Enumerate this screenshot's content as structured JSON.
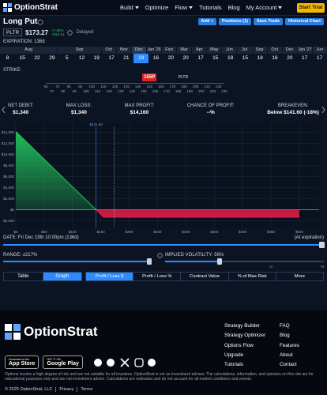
{
  "nav": {
    "logo": "OptionStrat",
    "links": [
      {
        "text": "Build",
        "dropdown": true
      },
      {
        "text": "Optimize",
        "dropdown": false
      },
      {
        "text": "Flow",
        "dropdown": true
      },
      {
        "text": "Tutorials",
        "dropdown": false
      },
      {
        "text": "Blog",
        "dropdown": false
      },
      {
        "text": "My Account",
        "dropdown": true
      }
    ],
    "cta": "Start Trial"
  },
  "strategy": {
    "title": "Long Put",
    "buttons": [
      "Add +",
      "Positions (1)",
      "Save Trade",
      "Historical Chart"
    ]
  },
  "quote": {
    "symbol": "PLTR",
    "price": "$173.27",
    "change_pct": "+7.85%",
    "change_abs": "+$12.61",
    "status": "Delayed"
  },
  "expiration": {
    "label": "EXPIRATION: 136d",
    "months": [
      {
        "name": "Aug",
        "days": [
          8,
          15,
          22,
          29
        ]
      },
      {
        "name": "Sep",
        "days": [
          5,
          12,
          19
        ]
      },
      {
        "name": "Oct",
        "days": [
          17
        ]
      },
      {
        "name": "Nov",
        "days": [
          21
        ]
      },
      {
        "name": "Dec",
        "days": [
          19
        ],
        "selected": true
      },
      {
        "name": "Jan '26",
        "days": [
          16
        ]
      },
      {
        "name": "Feb",
        "days": [
          20
        ]
      },
      {
        "name": "Mar",
        "days": [
          20
        ]
      },
      {
        "name": "Apr",
        "days": [
          17
        ]
      },
      {
        "name": "May",
        "days": [
          15
        ]
      },
      {
        "name": "Jun",
        "days": [
          18
        ]
      },
      {
        "name": "Jul",
        "days": [
          15
        ]
      },
      {
        "name": "Sep",
        "days": [
          18
        ]
      },
      {
        "name": "Oct",
        "days": [
          16
        ]
      },
      {
        "name": "Dec",
        "days": [
          20
        ]
      },
      {
        "name": "Jan '27",
        "days": [
          17
        ]
      },
      {
        "name": "Jun",
        "days": [
          17
        ]
      }
    ]
  },
  "strike": {
    "label": "STRIKE:",
    "position": "155P",
    "underlying": "PLTR",
    "strikes": [
      65,
      70,
      75,
      80,
      85,
      90,
      95,
      100,
      105,
      110,
      115,
      120,
      125,
      130,
      135,
      140,
      145,
      150,
      155,
      160,
      165,
      170,
      175,
      180,
      185,
      190,
      195,
      200,
      210,
      220,
      230,
      240
    ]
  },
  "stats": [
    {
      "label": "NET DEBIT:",
      "value": "$1,340"
    },
    {
      "label": "MAX LOSS:",
      "value": "$1,340"
    },
    {
      "label": "MAX PROFIT:",
      "value": "$14,160"
    },
    {
      "label": "CHANCE OF PROFIT:",
      "value": "--%"
    },
    {
      "label": "BREAKEVEN:",
      "value": "Below $141.60 (-18%)"
    }
  ],
  "chart_data": {
    "type": "line",
    "x": [
      0,
      141.6,
      155,
      500
    ],
    "series": [
      {
        "name": "Profit / Loss",
        "color": "#22c55e",
        "loss_color": "#e11d48",
        "values": [
          14160,
          0,
          -1340,
          -1340
        ]
      }
    ],
    "xlim": [
      0,
      535
    ],
    "ylim": [
      -3200,
      15800
    ],
    "xticks": [
      {
        "value": 0,
        "label": "$0"
      },
      {
        "value": 50,
        "label": "$50"
      },
      {
        "value": 100,
        "label": "$100"
      },
      {
        "value": 150,
        "label": "$150"
      },
      {
        "value": 200,
        "label": "$200"
      },
      {
        "value": 250,
        "label": "$250"
      },
      {
        "value": 300,
        "label": "$300"
      },
      {
        "value": 350,
        "label": "$350"
      },
      {
        "value": 400,
        "label": "$400"
      },
      {
        "value": 450,
        "label": "$450"
      },
      {
        "value": 500,
        "label": "$500"
      }
    ],
    "yticks": [
      {
        "value": -2000,
        "label": "-$2,000"
      },
      {
        "value": 0,
        "label": "$0"
      },
      {
        "value": 2000,
        "label": "$2,000"
      },
      {
        "value": 4000,
        "label": "$4,000"
      },
      {
        "value": 6000,
        "label": "$6,000"
      },
      {
        "value": 8000,
        "label": "$8,000"
      },
      {
        "value": 10000,
        "label": "$10,000"
      },
      {
        "value": 12000,
        "label": "$12,000"
      },
      {
        "value": 14000,
        "label": "$14,000"
      }
    ],
    "markers": [
      {
        "x": 141.6,
        "label": "$141.60"
      },
      {
        "x": 173.27
      }
    ],
    "grid": true
  },
  "date": {
    "label": "DATE: Fri Dec 19th 10:00pm (136d)",
    "note": "(At expiration)"
  },
  "range": {
    "label": "RANGE: ±217%"
  },
  "iv": {
    "label": "IMPLIED VOLATILITY: 56%",
    "ticks": [
      "+2",
      "+3"
    ]
  },
  "views": [
    "Table",
    "Graph"
  ],
  "metrics": [
    "Profit / Loss $",
    "Profit / Loss %",
    "Contract Value",
    "% of Max Risk",
    "More"
  ],
  "footer": {
    "logo": "OptionStrat",
    "links": [
      [
        "Strategy Builder",
        "Strategy Optimizer",
        "Options Flow",
        "Upgrade",
        "Tutorials"
      ],
      [
        "FAQ",
        "Blog",
        "Features",
        "About",
        "Contact"
      ]
    ],
    "badges": [
      {
        "small": "Download on the",
        "big": "App Store"
      },
      {
        "small": "GET IT ON",
        "big": "Google Play"
      }
    ],
    "disclaimer": "Options involve a high degree of risk and are not suitable for all investors. OptionStrat is not an investment advisor. The calculations, information, and opinions on this site are for educational purposes only and are not investment advice. Calculations are estimates and do not account for all market conditions and events.",
    "copyright": "© 2025 OptionStrat, LLC",
    "legal": [
      "Privacy",
      "Terms"
    ]
  }
}
